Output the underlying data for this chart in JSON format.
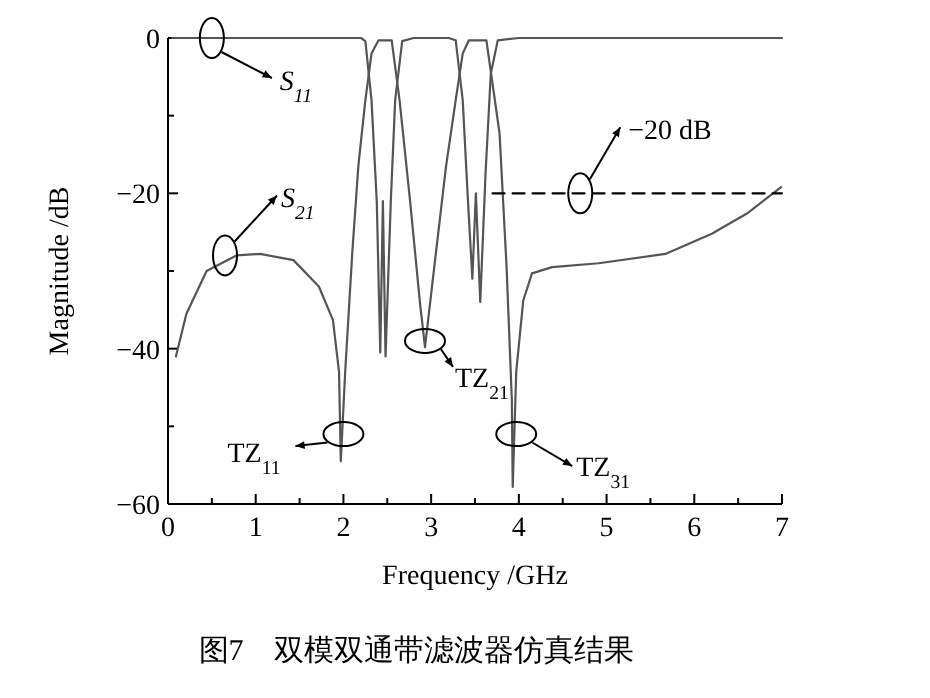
{
  "chart_data": {
    "type": "line",
    "title": "图7　双模双通带滤波器仿真结果",
    "xlabel": "Frequency /GHz",
    "ylabel": "Magnitude /dB",
    "xlim": [
      0,
      7
    ],
    "ylim": [
      -60,
      0
    ],
    "xticks": [
      0,
      {
        "value": 0.5,
        "label": null
      },
      1,
      {
        "value": 1.5,
        "label": null
      },
      2,
      {
        "value": 2.5,
        "label": null
      },
      3,
      {
        "value": 3.5,
        "label": null
      },
      4,
      {
        "value": 4.5,
        "label": null
      },
      5,
      {
        "value": 5.5,
        "label": null
      },
      6,
      {
        "value": 6.5,
        "label": null
      },
      7
    ],
    "yticks": [
      {
        "value": -60,
        "label": "−60"
      },
      {
        "value": -50,
        "label": null
      },
      {
        "value": -40,
        "label": "−40"
      },
      {
        "value": -30,
        "label": null
      },
      {
        "value": -20,
        "label": "−20"
      },
      {
        "value": -10,
        "label": null
      },
      0
    ],
    "grid": false,
    "series": [
      {
        "color": "#555555",
        "line_style": "solid",
        "x": [
          0.05,
          0.5,
          1.0,
          1.5,
          2.0,
          2.2,
          2.25,
          2.32,
          2.38,
          2.42,
          2.45,
          2.48,
          2.54,
          2.59,
          2.67,
          2.8,
          3.2,
          3.28,
          3.36,
          3.42,
          3.47,
          3.51,
          3.56,
          3.62,
          3.68,
          3.76,
          4.0,
          5.0,
          6.0,
          7.0
        ],
        "values": [
          0,
          0,
          0,
          0,
          0,
          0,
          -0.4,
          -8,
          -21,
          -40.5,
          -21,
          -41,
          -21,
          -8,
          -0.4,
          0,
          0,
          -0.3,
          -8,
          -21,
          -31,
          -20,
          -34,
          -17.5,
          -4.6,
          -0.3,
          0,
          0,
          0,
          0
        ]
      },
      {
        "color": "#555555",
        "line_style": "solid",
        "x": [
          0.09,
          0.21,
          0.44,
          0.78,
          1.05,
          1.43,
          1.72,
          1.88,
          1.95,
          1.97,
          2.02,
          2.1,
          2.17,
          2.25,
          2.32,
          2.4,
          2.55,
          2.64,
          2.76,
          2.87,
          2.93,
          3.02,
          3.17,
          3.28,
          3.36,
          3.43,
          3.63,
          3.78,
          3.86,
          3.92,
          3.93,
          3.97,
          4.05,
          4.15,
          4.38,
          4.91,
          5.67,
          6.2,
          6.6,
          6.99
        ],
        "values": [
          -41,
          -35.5,
          -30,
          -28,
          -27.8,
          -28.6,
          -32,
          -36.3,
          -43,
          -54.5,
          -43,
          -27.8,
          -16.5,
          -8,
          -2,
          -0.3,
          -0.3,
          -8,
          -21,
          -33.8,
          -39.8,
          -31,
          -16.5,
          -8,
          -2,
          -0.3,
          -0.3,
          -12.3,
          -29.5,
          -46.6,
          -57.8,
          -43,
          -33.8,
          -30.3,
          -29.5,
          -29,
          -27.8,
          -25.2,
          -22.6,
          -19.2
        ]
      },
      {
        "color": "#000000",
        "line_style": "dashed",
        "x": [
          3.7,
          7.0
        ],
        "values": [
          -20,
          -20
        ]
      }
    ],
    "annotations": [
      {
        "text": "S$_{11}$",
        "x": 0.5,
        "y": 0
      },
      {
        "text": "S$_{21}$",
        "x": 0.65,
        "y": -28
      },
      {
        "text": "−20 dB",
        "x": 4.7,
        "y": -20
      },
      {
        "text": "TZ$_{11}$",
        "x": 2.0,
        "y": -51
      },
      {
        "text": "TZ$_{21}$",
        "x": 2.93,
        "y": -39
      },
      {
        "text": "TZ$_{31}$",
        "x": 3.97,
        "y": -51
      }
    ]
  }
}
